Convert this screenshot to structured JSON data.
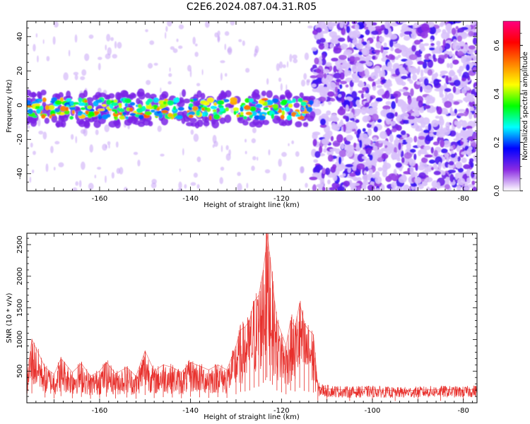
{
  "chart_data": [
    {
      "type": "heatmap",
      "title": "C2E6.2024.087.04.31.R05",
      "xlabel": "Height of straight line (km)",
      "ylabel": "Frequency (Hz)",
      "xlim": [
        -176,
        -77
      ],
      "ylim": [
        -50,
        49
      ],
      "xticks": [
        -160,
        -140,
        -120,
        -100,
        -80
      ],
      "yticks": [
        -40,
        -20,
        0,
        20,
        40
      ],
      "colorbar": {
        "label": "Normalized spectral amplitude",
        "range": [
          0.0,
          0.7
        ],
        "ticks": [
          0.0,
          0.2,
          0.4,
          0.6
        ],
        "colormap": [
          "#ffffff",
          "#8a2be2",
          "#0000ff",
          "#00ffff",
          "#00ff00",
          "#ffff00",
          "#ff8000",
          "#ff0000",
          "#ff0080"
        ]
      },
      "bands": [
        {
          "region": "low-altitude signal band",
          "x_range": [
            -176,
            -113
          ],
          "y_center": -2,
          "y_halfwidth": 6,
          "amplitude_range": [
            0.2,
            0.55
          ]
        },
        {
          "region": "broadband noise",
          "x_range": [
            -113,
            -77
          ],
          "y_range": [
            -50,
            49
          ],
          "amplitude_range": [
            0.02,
            0.15
          ]
        }
      ]
    },
    {
      "type": "line",
      "xlabel": "Height of straight line (km)",
      "ylabel": "SNR (10 * v/v)",
      "xlim": [
        -176,
        -77
      ],
      "ylim": [
        0,
        2680
      ],
      "xticks": [
        -160,
        -140,
        -120,
        -100,
        -80
      ],
      "yticks": [
        500,
        1000,
        1500,
        2000,
        2500
      ],
      "color": "#e8302c",
      "x": [
        -176,
        -174.9,
        -172,
        -170,
        -168.5,
        -166,
        -164,
        -162,
        -160,
        -158.5,
        -156.5,
        -154,
        -152,
        -150,
        -148,
        -146,
        -144,
        -142,
        -140,
        -138,
        -136,
        -134,
        -132,
        -130,
        -129,
        -128,
        -127,
        -126,
        -125,
        -124,
        -123.5,
        -123.2,
        -122.5,
        -122,
        -121,
        -120,
        -119,
        -118,
        -117,
        -116,
        -115,
        -114,
        -113,
        -112,
        -110,
        -105,
        -100,
        -95,
        -90,
        -85,
        -80,
        -77
      ],
      "values": [
        420,
        1000,
        560,
        450,
        700,
        480,
        620,
        420,
        500,
        640,
        460,
        560,
        420,
        820,
        500,
        600,
        560,
        480,
        640,
        580,
        520,
        600,
        520,
        900,
        1150,
        1200,
        1300,
        1600,
        1700,
        2100,
        2380,
        2680,
        2300,
        1900,
        1300,
        1100,
        900,
        1300,
        1200,
        1580,
        1250,
        1150,
        1080,
        250,
        220,
        200,
        210,
        190,
        200,
        210,
        200,
        220
      ]
    }
  ]
}
